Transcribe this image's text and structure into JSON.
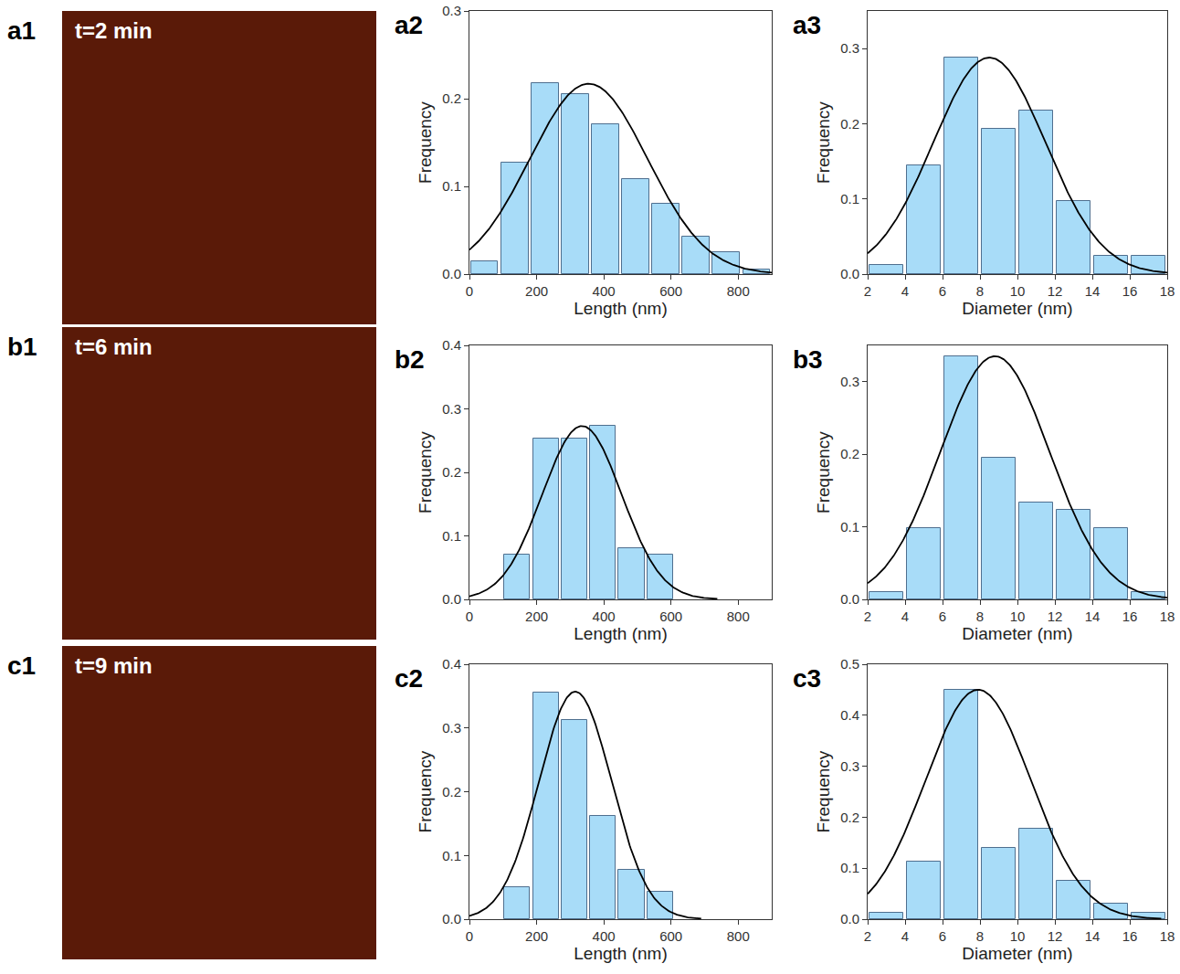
{
  "images": [
    {
      "panel": "a1",
      "text": "t=2 min"
    },
    {
      "panel": "b1",
      "text": "t=6 min"
    },
    {
      "panel": "c1",
      "text": "t=9 min"
    }
  ],
  "chart_data": [
    {
      "type": "histogram",
      "panel": "a2",
      "x_label": "Length (nm)",
      "y_label": "Frequency",
      "bins": [
        0,
        90,
        180,
        270,
        360,
        450,
        540,
        630,
        720,
        810,
        900
      ],
      "values": [
        0.015,
        0.127,
        0.218,
        0.205,
        0.171,
        0.108,
        0.08,
        0.043,
        0.025,
        0.005
      ],
      "fit": {
        "mean": 355,
        "sigma": 175,
        "peak": 0.217
      },
      "color": "#a8dcf8",
      "xlim": [
        0,
        900
      ],
      "xticks": [
        0,
        200,
        400,
        600,
        800
      ],
      "ylim": [
        0,
        0.3
      ],
      "yticks": [
        {
          "value": 0,
          "label": "0.0"
        },
        {
          "value": 0.1,
          "label": "0.1"
        },
        {
          "value": 0.2,
          "label": "0.2"
        },
        {
          "value": 0.3,
          "label": "0.3"
        }
      ]
    },
    {
      "type": "histogram",
      "panel": "a3",
      "x_label": "Diameter (nm)",
      "y_label": "Frequency",
      "bins": [
        2,
        4,
        6,
        8,
        10,
        12,
        14,
        16,
        18
      ],
      "values": [
        0.012,
        0.145,
        0.288,
        0.193,
        0.217,
        0.097,
        0.024,
        0.024
      ],
      "fit": {
        "mean": 8.5,
        "sigma": 3.0,
        "peak": 0.288
      },
      "color": "#a8dcf8",
      "xlim": [
        2,
        18
      ],
      "xticks": [
        2,
        4,
        6,
        8,
        10,
        12,
        14,
        16,
        18
      ],
      "ylim": [
        0,
        0.35
      ],
      "yticks": [
        {
          "value": 0,
          "label": "0.0"
        },
        {
          "value": 0.1,
          "label": "0.1"
        },
        {
          "value": 0.2,
          "label": "0.2"
        },
        {
          "value": 0.3,
          "label": "0.3"
        }
      ]
    },
    {
      "type": "histogram",
      "panel": "b2",
      "x_label": "Length (nm)",
      "y_label": "Frequency",
      "bins": [
        100,
        185,
        270,
        355,
        440,
        525,
        610
      ],
      "values": [
        0.07,
        0.253,
        0.253,
        0.273,
        0.08,
        0.07
      ],
      "fit": {
        "mean": 335,
        "sigma": 118,
        "peak": 0.273
      },
      "color": "#a8dcf8",
      "xlim": [
        0,
        900
      ],
      "xticks": [
        0,
        200,
        400,
        600,
        800
      ],
      "ylim": [
        0,
        0.4
      ],
      "yticks": [
        {
          "value": 0,
          "label": "0.0"
        },
        {
          "value": 0.1,
          "label": "0.1"
        },
        {
          "value": 0.2,
          "label": "0.2"
        },
        {
          "value": 0.3,
          "label": "0.3"
        },
        {
          "value": 0.4,
          "label": "0.4"
        }
      ]
    },
    {
      "type": "histogram",
      "panel": "b3",
      "x_label": "Diameter (nm)",
      "y_label": "Frequency",
      "bins": [
        2,
        4,
        6,
        8,
        10,
        12,
        14,
        16,
        18
      ],
      "values": [
        0.01,
        0.098,
        0.335,
        0.195,
        0.133,
        0.124,
        0.098,
        0.01
      ],
      "fit": {
        "mean": 8.8,
        "sigma": 2.92,
        "peak": 0.335
      },
      "color": "#a8dcf8",
      "xlim": [
        2,
        18
      ],
      "xticks": [
        2,
        4,
        6,
        8,
        10,
        12,
        14,
        16,
        18
      ],
      "ylim": [
        0,
        0.35
      ],
      "yticks": [
        {
          "value": 0,
          "label": "0.0"
        },
        {
          "value": 0.1,
          "label": "0.1"
        },
        {
          "value": 0.2,
          "label": "0.2"
        },
        {
          "value": 0.3,
          "label": "0.3"
        }
      ]
    },
    {
      "type": "histogram",
      "panel": "c2",
      "x_label": "Length (nm)",
      "y_label": "Frequency",
      "bins": [
        100,
        185,
        270,
        355,
        440,
        525,
        610
      ],
      "values": [
        0.05,
        0.356,
        0.313,
        0.162,
        0.077,
        0.043
      ],
      "fit": {
        "mean": 315,
        "sigma": 108,
        "peak": 0.357
      },
      "color": "#a8dcf8",
      "xlim": [
        0,
        900
      ],
      "xticks": [
        0,
        200,
        400,
        600,
        800
      ],
      "ylim": [
        0,
        0.4
      ],
      "yticks": [
        {
          "value": 0,
          "label": "0.0"
        },
        {
          "value": 0.1,
          "label": "0.1"
        },
        {
          "value": 0.2,
          "label": "0.2"
        },
        {
          "value": 0.3,
          "label": "0.3"
        },
        {
          "value": 0.4,
          "label": "0.4"
        }
      ]
    },
    {
      "type": "histogram",
      "panel": "c3",
      "x_label": "Diameter (nm)",
      "y_label": "Frequency",
      "bins": [
        2,
        4,
        6,
        8,
        10,
        12,
        14,
        16,
        18
      ],
      "values": [
        0.012,
        0.113,
        0.45,
        0.14,
        0.177,
        0.076,
        0.03,
        0.012
      ],
      "fit": {
        "mean": 7.9,
        "sigma": 2.81,
        "peak": 0.45
      },
      "color": "#a8dcf8",
      "xlim": [
        2,
        18
      ],
      "xticks": [
        2,
        4,
        6,
        8,
        10,
        12,
        14,
        16,
        18
      ],
      "ylim": [
        0,
        0.5
      ],
      "yticks": [
        {
          "value": 0,
          "label": "0.0"
        },
        {
          "value": 0.1,
          "label": "0.1"
        },
        {
          "value": 0.2,
          "label": "0.2"
        },
        {
          "value": 0.3,
          "label": "0.3"
        },
        {
          "value": 0.4,
          "label": "0.4"
        },
        {
          "value": 0.5,
          "label": "0.5"
        }
      ]
    }
  ]
}
